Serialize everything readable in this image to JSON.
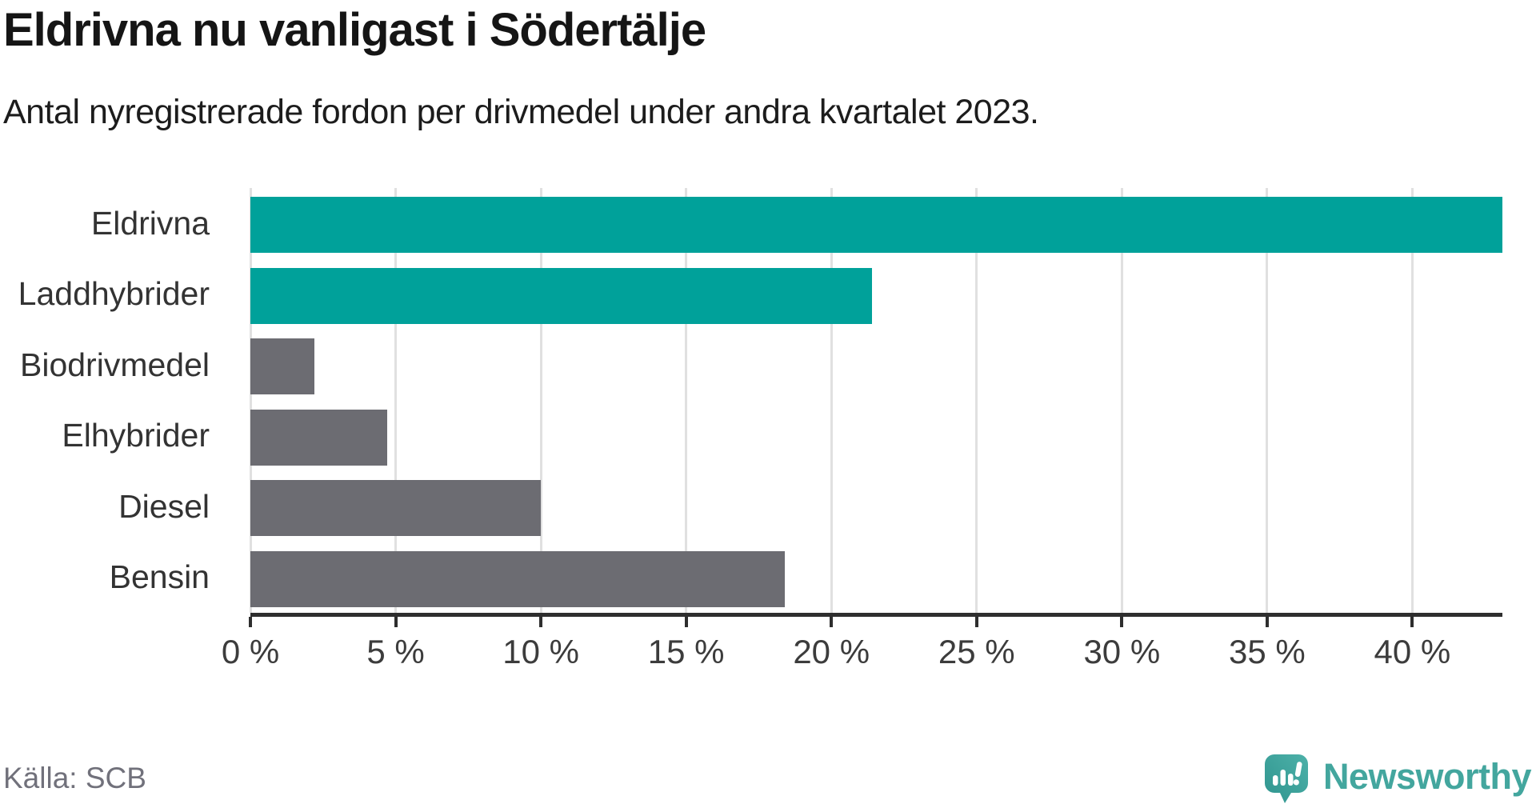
{
  "header": {
    "title": "Eldrivna nu vanligast i Södertälje",
    "subtitle": "Antal nyregistrerade fordon per drivmedel under andra kvartalet 2023."
  },
  "chart_data": {
    "type": "bar",
    "orientation": "horizontal",
    "title": "Eldrivna nu vanligast i Södertälje",
    "subtitle": "Antal nyregistrerade fordon per drivmedel under andra kvartalet 2023.",
    "categories": [
      "Eldrivna",
      "Laddhybrider",
      "Biodrivmedel",
      "Elhybrider",
      "Diesel",
      "Bensin"
    ],
    "values": [
      43.1,
      21.4,
      2.2,
      4.7,
      10.0,
      18.4
    ],
    "unit": "%",
    "bar_colors": [
      "#00A19A",
      "#00A19A",
      "#6C6C72",
      "#6C6C72",
      "#6C6C72",
      "#6C6C72"
    ],
    "xlabel": "",
    "ylabel": "",
    "xlim": [
      0,
      43.1
    ],
    "x_ticks": [
      0,
      5,
      10,
      15,
      20,
      25,
      30,
      35,
      40
    ],
    "x_tick_suffix": " %",
    "grid": "vertical-gridlines",
    "legend": "none"
  },
  "colors": {
    "highlight": "#00A19A",
    "neutral_bar": "#6C6C72",
    "gridline": "#E0E0E0",
    "axis": "#2E2E2E",
    "title_text": "#151515",
    "tick_text": "#3C3C3C",
    "source_text": "#71717B",
    "brand_teal": "#43A69E"
  },
  "footer": {
    "source": "Källa: SCB",
    "brand_name": "Newsworthy"
  },
  "icons": {
    "brand_icon": "newsworthy-speech-bubble-with-bar-chart-and-exclamation"
  }
}
